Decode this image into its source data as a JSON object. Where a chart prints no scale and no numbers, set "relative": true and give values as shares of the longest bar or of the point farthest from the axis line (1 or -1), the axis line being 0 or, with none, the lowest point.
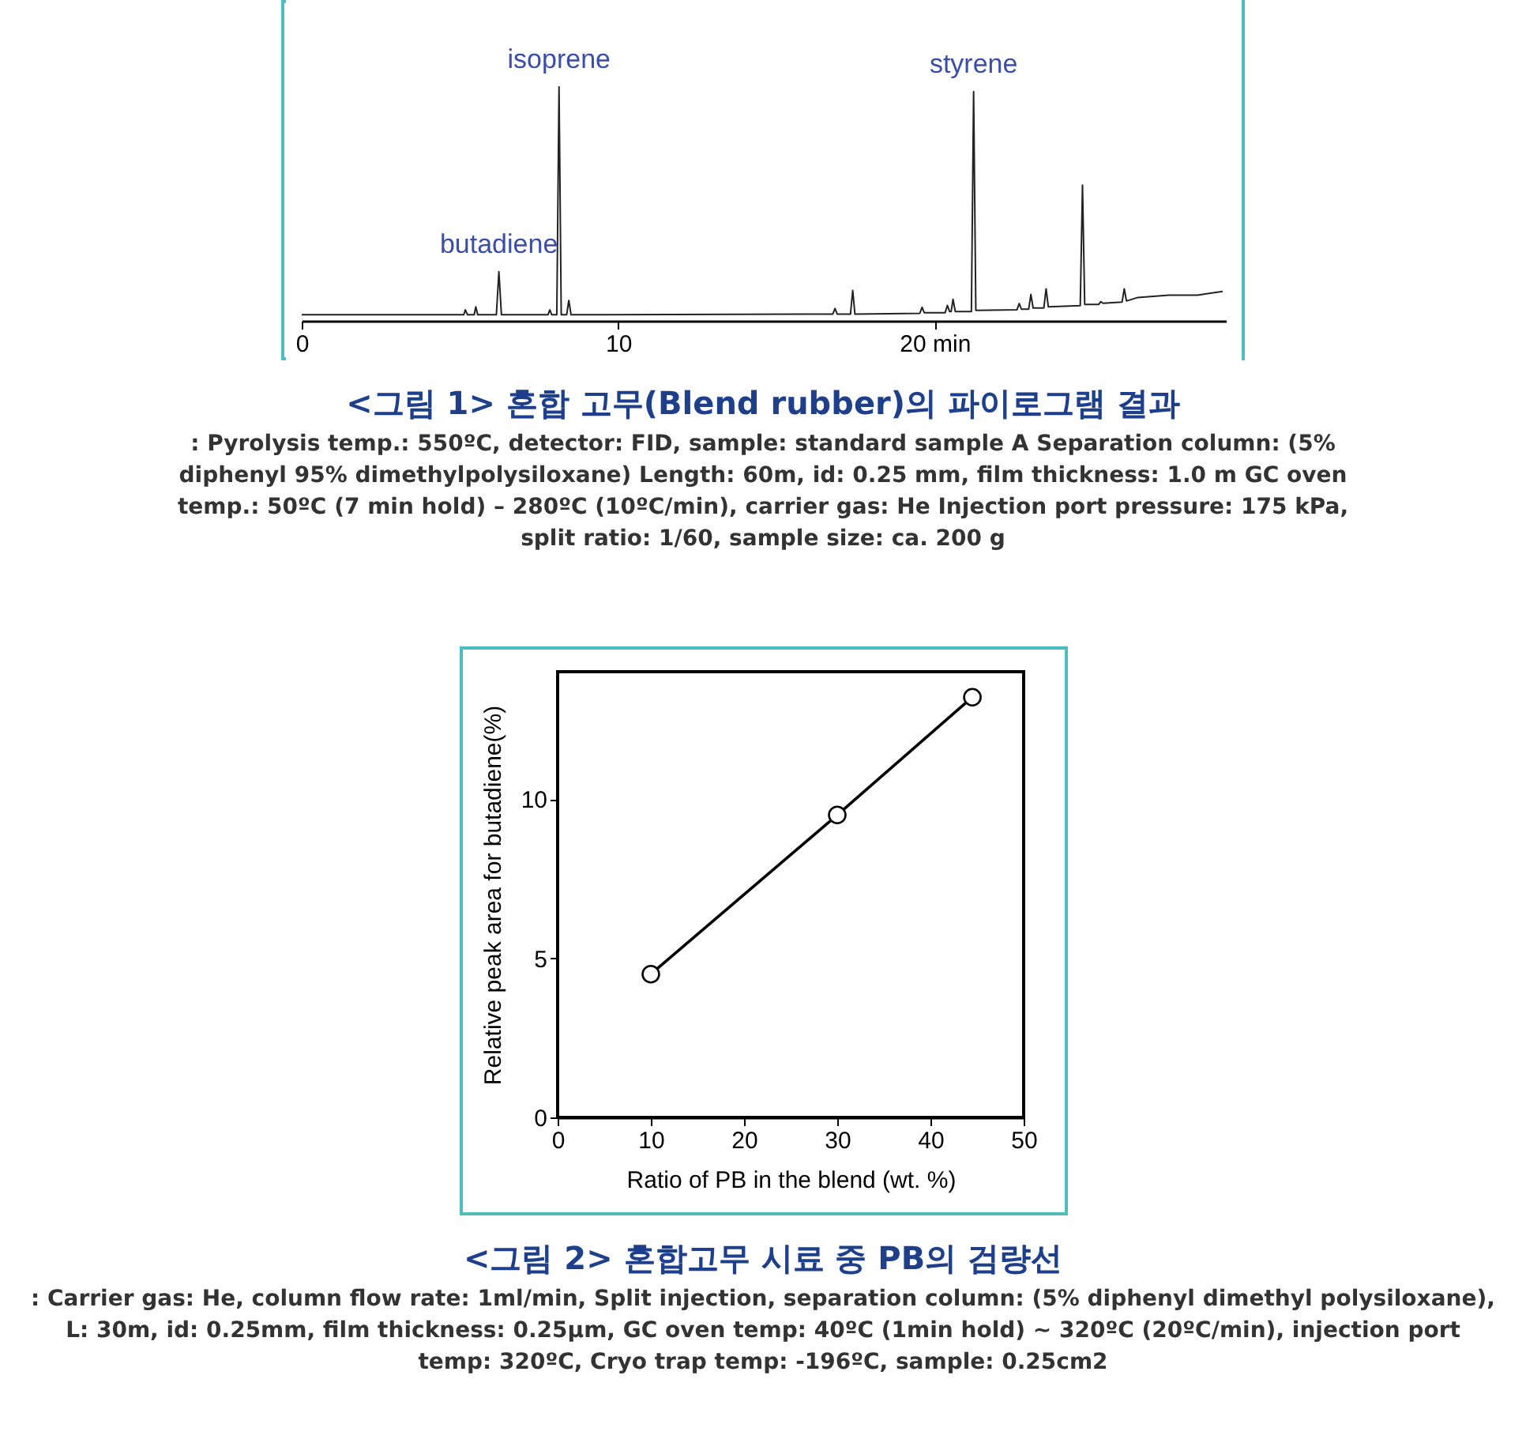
{
  "chart_data": [
    {
      "type": "line",
      "relative": true,
      "title": "<그림 1> 혼합 고무(Blend rubber)의 파이로그램 결과",
      "annotations": [
        {
          "text": "isoprene",
          "x": 8.13,
          "y": 1.0
        },
        {
          "text": "butadiene",
          "x": 6.23,
          "y": 0.21
        },
        {
          "text": "styrene",
          "x": 21.23,
          "y": 0.98
        },
        ": Pyrolysis temp.: 550ºC, detector: FID, sample: standard sample A Separation column: (5% diphenyl 95% dimethylpolysiloxane) Length: 60m, id: 0.25 mm, film thickness: 1.0 m GC oven temp.: 50ºC (7 min hold) – 280ºC (10ºC/min), carrier gas: He Injection port pressure: 175 kPa, split ratio: 1/60, sample size: ca. 200 g"
      ],
      "xlim": [
        0,
        29.2
      ],
      "xticks": [
        0,
        10,
        {
          "value": 20,
          "label": "20 min"
        }
      ],
      "x": [
        0,
        5.0,
        5.12,
        5.17,
        5.24,
        5.45,
        5.5,
        5.56,
        6.15,
        6.23,
        6.31,
        7.78,
        7.84,
        7.9,
        8.06,
        8.13,
        8.2,
        8.37,
        8.44,
        8.51,
        16.78,
        16.85,
        16.92,
        17.34,
        17.41,
        17.48,
        19.53,
        19.6,
        19.67,
        20.33,
        20.4,
        20.47,
        20.52,
        20.58,
        20.65,
        21.16,
        21.23,
        21.3,
        22.6,
        22.67,
        22.74,
        22.97,
        23.04,
        23.11,
        23.45,
        23.52,
        23.59,
        24.6,
        24.67,
        24.74,
        25.18,
        25.25,
        25.32,
        25.92,
        25.99,
        26.06,
        26.42,
        27.4,
        28.3,
        29.1
      ],
      "series": [
        {
          "color": "#222222",
          "values": [
            0.026,
            0.026,
            0.026,
            0.047,
            0.026,
            0.026,
            0.06,
            0.026,
            0.026,
            0.21,
            0.026,
            0.026,
            0.047,
            0.026,
            0.026,
            1.0,
            0.026,
            0.026,
            0.087,
            0.026,
            0.029,
            0.053,
            0.029,
            0.029,
            0.13,
            0.029,
            0.032,
            0.058,
            0.035,
            0.035,
            0.066,
            0.04,
            0.04,
            0.092,
            0.04,
            0.04,
            0.98,
            0.045,
            0.047,
            0.074,
            0.05,
            0.05,
            0.113,
            0.055,
            0.055,
            0.137,
            0.06,
            0.065,
            0.58,
            0.07,
            0.07,
            0.082,
            0.075,
            0.08,
            0.137,
            0.085,
            0.1,
            0.11,
            0.11,
            0.126
          ]
        }
      ]
    },
    {
      "type": "line",
      "title": "<그림 2> 혼합고무 시료 중 PB의 검량선",
      "annotations": [
        ": Carrier gas: He, column flow rate: 1ml/min, Split injection, separation column: (5% diphenyl dimethyl polysiloxane), L: 30m, id: 0.25mm, film thickness: 0.25μm, GC oven temp: 40ºC (1min hold) ~ 320ºC (20ºC/min), injection port temp: 320ºC, Cryo trap temp: -196ºC, sample: 0.25cm2"
      ],
      "xlabel": "Ratio of PB in the blend (wt. %)",
      "ylabel": "Relative peak area for butadiene(%)",
      "xlim": [
        0,
        50
      ],
      "xticks": [
        0,
        10,
        20,
        30,
        40,
        50
      ],
      "ylim": [
        0,
        14
      ],
      "yticks": [
        0,
        5,
        10
      ],
      "marker": "circle",
      "x": [
        10,
        30,
        44.5
      ],
      "series": [
        {
          "color": "#000000",
          "values": [
            4.5,
            9.5,
            13.2
          ]
        }
      ]
    }
  ]
}
